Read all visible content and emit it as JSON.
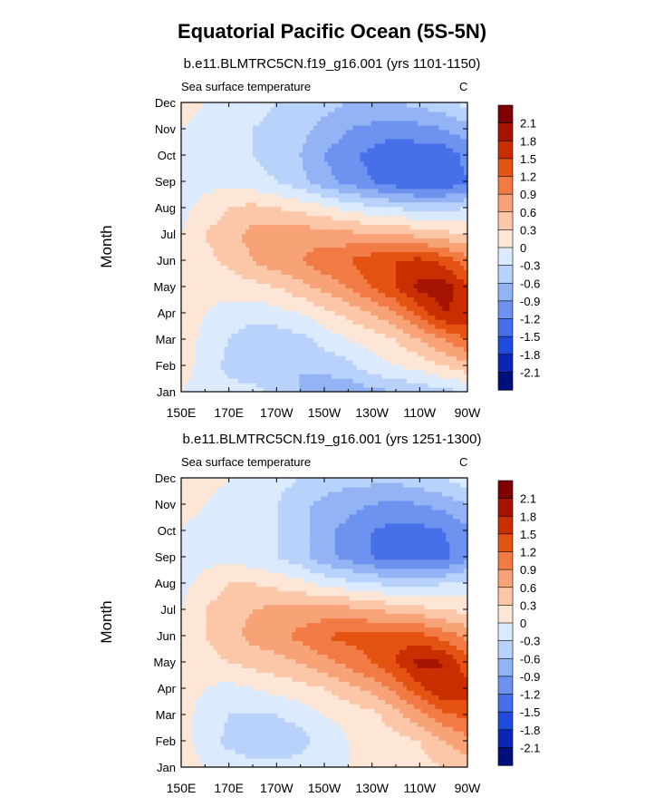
{
  "main_title": "Equatorial Pacific Ocean (5S-5N)",
  "colorbar": {
    "levels": [
      "2.1",
      "1.8",
      "1.5",
      "1.2",
      "0.9",
      "0.6",
      "0.3",
      "0",
      "-0.3",
      "-0.6",
      "-0.9",
      "-1.2",
      "-1.5",
      "-1.8",
      "-2.1"
    ],
    "colors": [
      "#7f0000",
      "#a51400",
      "#c92e00",
      "#e45312",
      "#f27b45",
      "#f8a277",
      "#fbc7a8",
      "#fde6d5",
      "#dbeafc",
      "#b9d2fb",
      "#93b3f5",
      "#6d92ef",
      "#4770e8",
      "#1f4bdc",
      "#0a26b6",
      "#00107a"
    ]
  },
  "chart_data": [
    {
      "type": "heatmap",
      "subtitle": "b.e11.BLMTRC5CN.f19_g16.001 (yrs 1101-1150)",
      "variable_label": "Sea surface temperature",
      "units": "C",
      "ylabel": "Month",
      "x_ticks": [
        "150E",
        "170E",
        "170W",
        "150W",
        "130W",
        "110W",
        "90W"
      ],
      "y_ticks": [
        "Jan",
        "Feb",
        "Mar",
        "Apr",
        "May",
        "Jun",
        "Jul",
        "Aug",
        "Sep",
        "Oct",
        "Nov",
        "Dec"
      ],
      "x_values_lon": [
        150,
        160,
        170,
        180,
        190,
        200,
        210,
        220,
        230,
        240,
        250,
        260,
        270
      ],
      "values": [
        [
          0.0,
          -0.1,
          -0.2,
          -0.2,
          -0.4,
          -0.6,
          -0.8,
          -0.8,
          -0.7,
          -0.6,
          -0.5,
          -0.4,
          -0.3
        ],
        [
          0.1,
          -0.1,
          -0.4,
          -0.5,
          -0.6,
          -0.6,
          -0.5,
          -0.4,
          -0.1,
          0.0,
          0.1,
          0.3,
          0.5
        ],
        [
          0.2,
          -0.1,
          -0.3,
          -0.5,
          -0.5,
          -0.4,
          -0.2,
          0.0,
          0.1,
          0.3,
          0.6,
          0.9,
          1.2
        ],
        [
          0.2,
          0.0,
          -0.1,
          -0.2,
          -0.1,
          0.0,
          0.2,
          0.4,
          0.6,
          0.9,
          1.3,
          1.8,
          1.7
        ],
        [
          0.1,
          0.1,
          0.1,
          0.2,
          0.3,
          0.5,
          0.7,
          0.9,
          1.2,
          1.5,
          1.9,
          2.0,
          1.5
        ],
        [
          0.0,
          0.2,
          0.4,
          0.6,
          0.8,
          0.9,
          1.1,
          1.2,
          1.4,
          1.5,
          1.6,
          1.4,
          1.0
        ],
        [
          0.0,
          0.3,
          0.5,
          0.7,
          0.8,
          0.8,
          0.7,
          0.7,
          0.6,
          0.6,
          0.5,
          0.4,
          0.3
        ],
        [
          -0.1,
          0.1,
          0.3,
          0.4,
          0.3,
          0.2,
          0.1,
          -0.1,
          -0.2,
          -0.3,
          -0.4,
          -0.4,
          -0.3
        ],
        [
          -0.1,
          -0.1,
          -0.1,
          -0.2,
          -0.3,
          -0.5,
          -0.8,
          -1.0,
          -1.2,
          -1.4,
          -1.5,
          -1.5,
          -1.2
        ],
        [
          -0.1,
          -0.2,
          -0.2,
          -0.3,
          -0.4,
          -0.6,
          -0.9,
          -1.1,
          -1.3,
          -1.4,
          -1.4,
          -1.4,
          -1.1
        ],
        [
          0.0,
          -0.1,
          -0.2,
          -0.3,
          -0.4,
          -0.5,
          -0.7,
          -0.9,
          -1.0,
          -1.1,
          -1.0,
          -0.9,
          -0.7
        ],
        [
          0.1,
          0.0,
          -0.1,
          -0.2,
          -0.3,
          -0.4,
          -0.5,
          -0.6,
          -0.6,
          -0.6,
          -0.5,
          -0.4,
          -0.2
        ]
      ],
      "range": [
        -2.1,
        2.1
      ]
    },
    {
      "type": "heatmap",
      "subtitle": "b.e11.BLMTRC5CN.f19_g16.001 (yrs 1251-1300)",
      "variable_label": "Sea surface temperature",
      "units": "C",
      "ylabel": "Month",
      "x_ticks": [
        "150E",
        "170E",
        "170W",
        "150W",
        "130W",
        "110W",
        "90W"
      ],
      "y_ticks": [
        "Jan",
        "Feb",
        "Mar",
        "Apr",
        "May",
        "Jun",
        "Jul",
        "Aug",
        "Sep",
        "Oct",
        "Nov",
        "Dec"
      ],
      "x_values_lon": [
        150,
        160,
        170,
        180,
        190,
        200,
        210,
        220,
        230,
        240,
        250,
        260,
        270
      ],
      "values": [
        [
          0.1,
          0.0,
          -0.1,
          -0.2,
          -0.2,
          -0.2,
          -0.1,
          0.0,
          0.1,
          0.1,
          0.2,
          0.3,
          0.4
        ],
        [
          0.1,
          -0.1,
          -0.4,
          -0.5,
          -0.5,
          -0.4,
          -0.2,
          0.0,
          0.1,
          0.2,
          0.3,
          0.6,
          0.8
        ],
        [
          0.1,
          -0.1,
          -0.3,
          -0.3,
          -0.3,
          -0.2,
          0.0,
          0.1,
          0.2,
          0.5,
          0.8,
          1.1,
          1.3
        ],
        [
          0.1,
          0.0,
          -0.1,
          0.0,
          0.1,
          0.2,
          0.3,
          0.5,
          0.7,
          1.0,
          1.4,
          1.8,
          1.6
        ],
        [
          0.1,
          0.2,
          0.3,
          0.4,
          0.5,
          0.6,
          0.8,
          1.0,
          1.2,
          1.5,
          1.9,
          1.8,
          1.3
        ],
        [
          0.1,
          0.3,
          0.5,
          0.7,
          0.8,
          1.0,
          1.2,
          1.3,
          1.3,
          1.4,
          1.3,
          1.1,
          0.8
        ],
        [
          0.0,
          0.3,
          0.5,
          0.6,
          0.7,
          0.7,
          0.7,
          0.7,
          0.6,
          0.5,
          0.4,
          0.3,
          0.2
        ],
        [
          -0.1,
          0.1,
          0.3,
          0.3,
          0.2,
          0.1,
          -0.1,
          -0.2,
          -0.3,
          -0.4,
          -0.4,
          -0.3,
          -0.2
        ],
        [
          -0.1,
          -0.1,
          -0.1,
          -0.2,
          -0.3,
          -0.5,
          -0.8,
          -1.0,
          -1.2,
          -1.3,
          -1.3,
          -1.3,
          -1.0
        ],
        [
          0.0,
          -0.1,
          -0.2,
          -0.3,
          -0.3,
          -0.5,
          -0.8,
          -1.0,
          -1.2,
          -1.3,
          -1.3,
          -1.2,
          -1.0
        ],
        [
          0.1,
          0.0,
          -0.1,
          -0.2,
          -0.3,
          -0.5,
          -0.7,
          -0.8,
          -0.9,
          -1.0,
          -0.9,
          -0.8,
          -0.6
        ],
        [
          0.2,
          0.1,
          0.0,
          -0.1,
          -0.2,
          -0.3,
          -0.4,
          -0.5,
          -0.5,
          -0.5,
          -0.4,
          -0.3,
          -0.1
        ]
      ],
      "range": [
        -2.1,
        2.1
      ]
    }
  ]
}
